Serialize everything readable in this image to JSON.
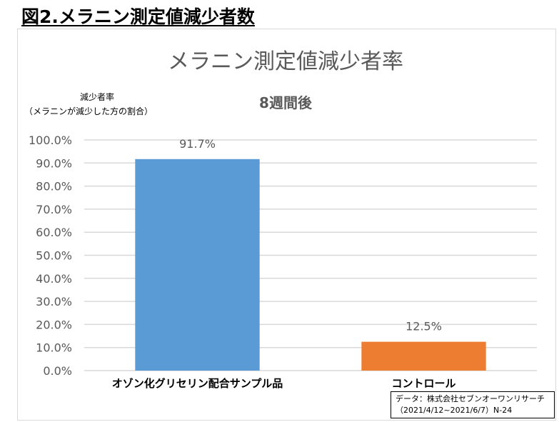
{
  "figure_title": "図2.メラニン測定値減少者数",
  "source_note": {
    "line1": "データ：株式会社セブンオーワンリサーチ",
    "line2": "（2021/4/12~2021/6/7）N-24"
  },
  "chart_data": {
    "type": "bar",
    "title": "メラニン測定値減少者率",
    "subtitle": "8週間後",
    "ylabel": "減少者率",
    "ylabel_note": "（メラニンが減少した方の割合）",
    "categories": [
      "オゾン化グリセリン配合サンプル品",
      "コントロール"
    ],
    "values": [
      91.7,
      12.5
    ],
    "data_labels": [
      "91.7%",
      "12.5%"
    ],
    "ylim": [
      0,
      100
    ],
    "yticks": [
      "0.0%",
      "10.0%",
      "20.0%",
      "30.0%",
      "40.0%",
      "50.0%",
      "60.0%",
      "70.0%",
      "80.0%",
      "90.0%",
      "100.0%"
    ],
    "bar_colors": [
      "#5b9bd5",
      "#ed7d31"
    ],
    "grid": true,
    "legend": false
  }
}
